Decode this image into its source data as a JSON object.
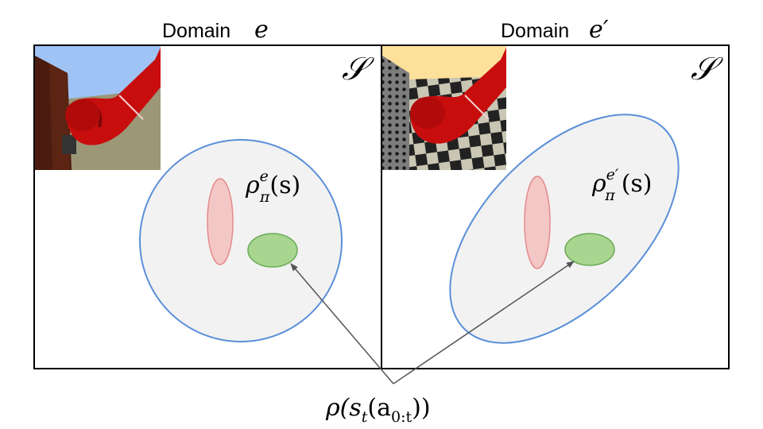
{
  "domains": [
    {
      "word": "Domain",
      "symbol": "e"
    },
    {
      "word": "Domain",
      "symbol": "e′"
    }
  ],
  "space_label": "𝒮",
  "density": [
    {
      "rho": "ρ",
      "sub": "π",
      "sup": "e",
      "arg": "(s)"
    },
    {
      "rho": "ρ",
      "sub": "π",
      "sup": "e′",
      "arg": "(s)"
    }
  ],
  "bottom_label": {
    "rho": "ρ(s",
    "t": "t",
    "mid": "(a",
    "range": "0:t",
    "end": "))"
  },
  "colors": {
    "border": "#000000",
    "distribution_fill": "#f2f2f2",
    "distribution_stroke": "#5b8fd9",
    "red_region_fill": "#f4c7c7",
    "red_region_stroke": "#e58a8a",
    "green_region_fill": "#a8d58f",
    "green_region_stroke": "#6aaa55",
    "arrow": "#555555",
    "sky_blue": "#9fc3f5",
    "sky_yellow": "#fde09a",
    "robot_red": "#c80d0d"
  },
  "icons": [
    "robot-arm-image",
    "arrow-icon"
  ]
}
